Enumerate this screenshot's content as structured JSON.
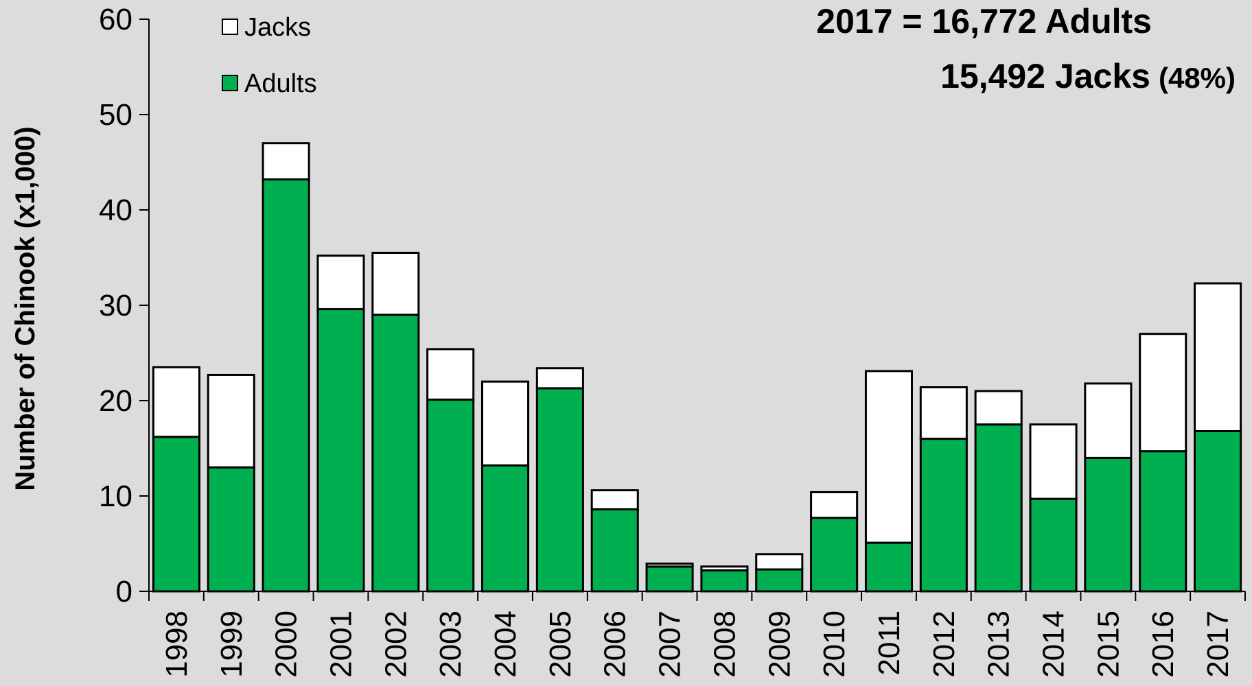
{
  "chart_data": {
    "type": "bar",
    "stacked": true,
    "title": "",
    "xlabel": "",
    "ylabel": "Number of Chinook (x1,000)",
    "ylim": [
      0,
      60
    ],
    "yticks": [
      0,
      10,
      20,
      30,
      40,
      50,
      60
    ],
    "grid": false,
    "legend_position": "top-left",
    "categories": [
      "1998",
      "1999",
      "2000",
      "2001",
      "2002",
      "2003",
      "2004",
      "2005",
      "2006",
      "2007",
      "2008",
      "2009",
      "2010",
      "2011",
      "2012",
      "2013",
      "2014",
      "2015",
      "2016",
      "2017"
    ],
    "series": [
      {
        "name": "Adults",
        "color": "#00b050",
        "values": [
          16.2,
          13.0,
          43.2,
          29.6,
          29.0,
          20.1,
          13.2,
          21.3,
          8.6,
          2.6,
          2.2,
          2.3,
          7.7,
          5.1,
          16.0,
          17.5,
          9.7,
          14.0,
          14.7,
          16.8
        ]
      },
      {
        "name": "Jacks",
        "color": "#ffffff",
        "values": [
          7.3,
          9.7,
          3.8,
          5.6,
          6.5,
          5.3,
          8.8,
          2.1,
          2.0,
          0.3,
          0.4,
          1.6,
          2.7,
          18.0,
          5.4,
          3.5,
          7.8,
          7.8,
          12.3,
          15.5
        ]
      }
    ],
    "annotations": {
      "line1": "2017 = 16,772 Adults",
      "line2_main": "15,492 Jacks",
      "line2_pct": "(48%)"
    }
  }
}
